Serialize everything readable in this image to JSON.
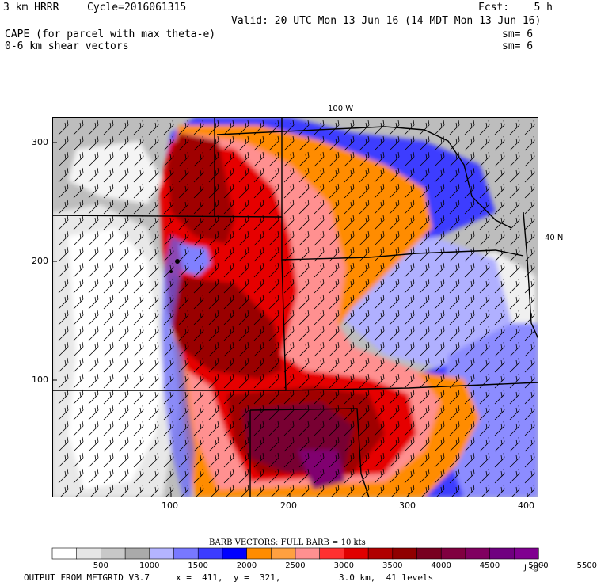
{
  "header": {
    "model": "3 km HRRR",
    "cycle": "Cycle=2016061315",
    "forecast": "Fcst:    5 h",
    "valid": "Valid: 20 UTC Mon 13 Jun 16 (14 MDT Mon 13 Jun 16)",
    "field1": "CAPE (for parcel with max theta-e)",
    "field1_sm": "sm= 6",
    "field2": "0-6 km shear vectors",
    "field2_sm": "sm= 6"
  },
  "map": {
    "lon_label": "100 W",
    "lat_label": "40 N",
    "x_ticks": [
      "100",
      "200",
      "300",
      "400"
    ],
    "y_ticks": [
      "300",
      "200",
      "100"
    ]
  },
  "legend": {
    "barb_title": "BARB VECTORS:  FULL BARB = 10 kts",
    "units": "J kg",
    "units_exp": "-1",
    "labels": [
      "500",
      "1000",
      "1500",
      "2000",
      "2500",
      "3000",
      "3500",
      "4000",
      "4500",
      "5000",
      "5500"
    ],
    "colors": [
      "#ffffff",
      "#e6e6e6",
      "#c8c8c8",
      "#aaaaaa",
      "#b4b4ff",
      "#7878ff",
      "#3c3cff",
      "#0000ff",
      "#ff8c00",
      "#ffa040",
      "#ff9090",
      "#ff3030",
      "#e00000",
      "#b00000",
      "#900000",
      "#780020",
      "#800040",
      "#800060",
      "#700080",
      "#800090"
    ]
  },
  "footer": {
    "output": "OUTPUT FROM METGRID V3.7",
    "coords": "x =  411,  y =  321,",
    "levels": "3.0 km,  41 levels"
  }
}
